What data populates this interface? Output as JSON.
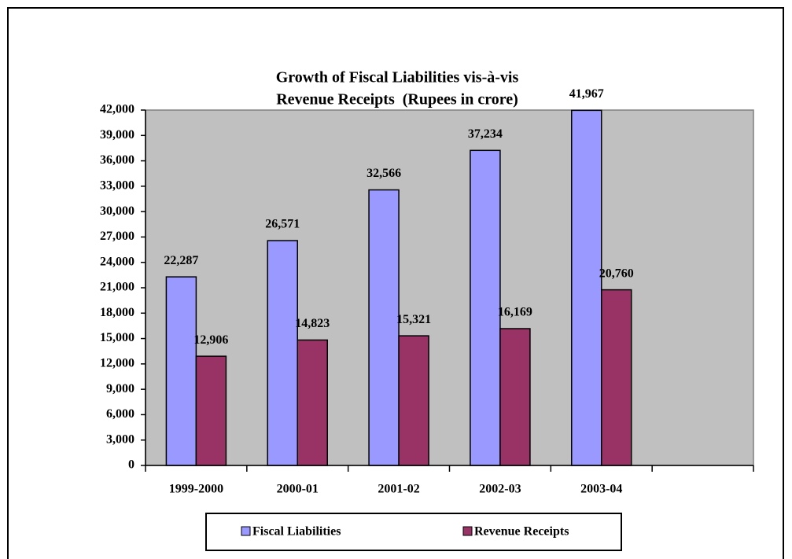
{
  "chart_data": {
    "type": "bar",
    "title": [
      "Growth of Fiscal Liabilities vis-à-vis",
      "Revenue Receipts  (Rupees in crore)"
    ],
    "categories": [
      "1999-2000",
      "2000-01",
      "2001-02",
      "2002-03",
      "2003-04",
      null
    ],
    "series": [
      {
        "name": "Fiscal Liabilities",
        "color": "#9999ff",
        "values": [
          22287,
          26571,
          32566,
          37234,
          41967,
          null
        ],
        "value_labels": [
          "22,287",
          "26,571",
          "32,566",
          "37,234",
          "41,967",
          null
        ]
      },
      {
        "name": "Revenue Receipts",
        "color": "#993366",
        "values": [
          12906,
          14823,
          15321,
          16169,
          20760,
          null
        ],
        "value_labels": [
          "12,906",
          "14,823",
          "15,321",
          "16,169",
          "20,760",
          null
        ]
      }
    ],
    "ylim": [
      0,
      42000
    ],
    "yticks": [
      0,
      {
        "value": 3000,
        "label": "3,000"
      },
      {
        "value": 6000,
        "label": "6,000"
      },
      {
        "value": 9000,
        "label": "9,000"
      },
      {
        "value": 12000,
        "label": "12,000"
      },
      {
        "value": 15000,
        "label": "15,000"
      },
      {
        "value": 18000,
        "label": "18,000"
      },
      {
        "value": 21000,
        "label": "21,000"
      },
      {
        "value": 24000,
        "label": "24,000"
      },
      {
        "value": 27000,
        "label": "27,000"
      },
      {
        "value": 30000,
        "label": "30,000"
      },
      {
        "value": 33000,
        "label": "33,000"
      },
      {
        "value": 36000,
        "label": "36,000"
      },
      {
        "value": 39000,
        "label": "39,000"
      },
      {
        "value": 42000,
        "label": "42,000"
      }
    ],
    "legend": "bottom",
    "plot_background": "#c0c0c0"
  }
}
